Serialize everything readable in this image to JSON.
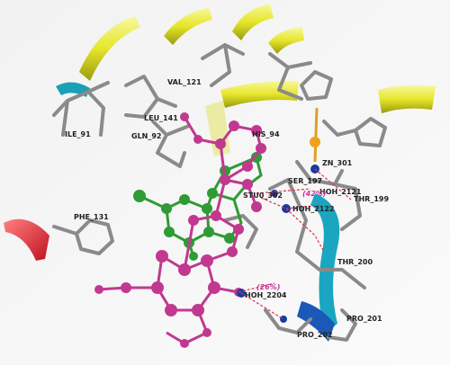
{
  "residue_labels": [
    "VAL_121",
    "ILE_91",
    "LEU_141",
    "GLN_92",
    "HIS_94",
    "ZN_301",
    "HOH_2121",
    "SER_197",
    "THR_199",
    "STU0_302",
    "HOH_2122",
    "PHE_131",
    "THR_200",
    "HOH_2204",
    "PRO_201",
    "PRO_202"
  ],
  "hbond_labels": [
    "(42%)",
    "(26%)"
  ]
}
